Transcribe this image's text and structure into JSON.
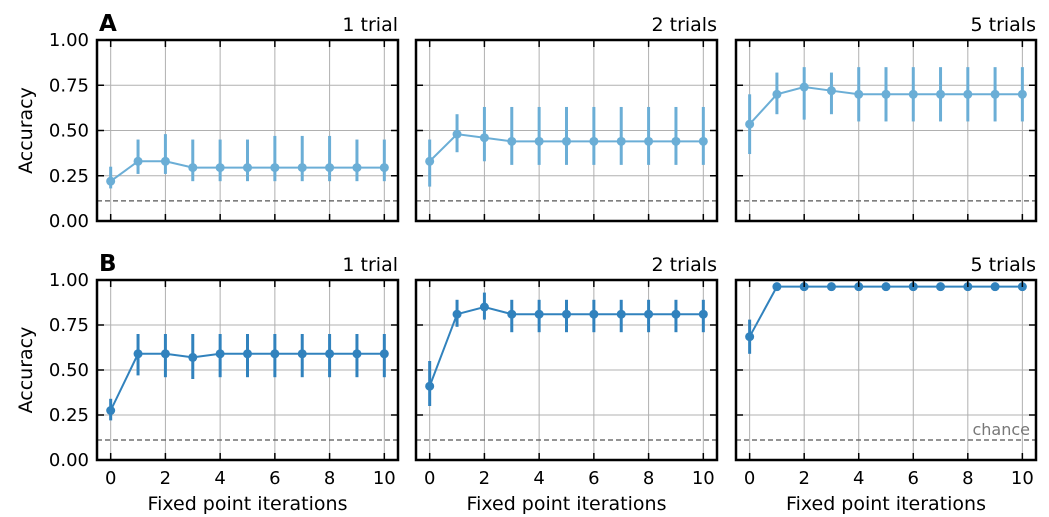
{
  "colors": {
    "row_A": "#6baed6",
    "row_B": "#3182bd",
    "chance_line": "#555555",
    "chance_label": "#777777",
    "grid": "#b0b0b0",
    "frame": "#000000"
  },
  "chart_data": [
    {
      "type": "line",
      "row": "A",
      "panel_label": "A",
      "title": "1 trial",
      "xlabel": "",
      "ylabel": "Accuracy",
      "x": [
        0,
        1,
        2,
        3,
        4,
        5,
        6,
        7,
        8,
        9,
        10
      ],
      "values": [
        0.22,
        0.33,
        0.33,
        0.295,
        0.295,
        0.295,
        0.295,
        0.295,
        0.295,
        0.295,
        0.295
      ],
      "err_low": [
        0.18,
        0.26,
        0.26,
        0.22,
        0.22,
        0.22,
        0.22,
        0.22,
        0.22,
        0.22,
        0.22
      ],
      "err_high": [
        0.3,
        0.45,
        0.48,
        0.45,
        0.45,
        0.45,
        0.47,
        0.47,
        0.47,
        0.45,
        0.45
      ],
      "chance": 0.111,
      "xlim": [
        -0.5,
        10.5
      ],
      "ylim": [
        0,
        1.0
      ],
      "xticks": [
        0,
        2,
        4,
        6,
        8,
        10
      ],
      "yticks": [
        "0.00",
        "0.25",
        "0.50",
        "0.75",
        "1.00"
      ],
      "grid": true
    },
    {
      "type": "line",
      "row": "A",
      "title": "2 trials",
      "xlabel": "",
      "x": [
        0,
        1,
        2,
        3,
        4,
        5,
        6,
        7,
        8,
        9,
        10
      ],
      "values": [
        0.33,
        0.48,
        0.46,
        0.44,
        0.44,
        0.44,
        0.44,
        0.44,
        0.44,
        0.44,
        0.44
      ],
      "err_low": [
        0.19,
        0.38,
        0.33,
        0.31,
        0.31,
        0.31,
        0.31,
        0.31,
        0.31,
        0.31,
        0.31
      ],
      "err_high": [
        0.45,
        0.59,
        0.63,
        0.63,
        0.63,
        0.63,
        0.63,
        0.63,
        0.63,
        0.63,
        0.63
      ],
      "chance": 0.111,
      "xlim": [
        -0.5,
        10.5
      ],
      "ylim": [
        0,
        1.0
      ],
      "xticks": [
        0,
        2,
        4,
        6,
        8,
        10
      ],
      "grid": true
    },
    {
      "type": "line",
      "row": "A",
      "title": "5 trials",
      "xlabel": "",
      "x": [
        0,
        1,
        2,
        3,
        4,
        5,
        6,
        7,
        8,
        9,
        10
      ],
      "values": [
        0.535,
        0.7,
        0.74,
        0.72,
        0.7,
        0.7,
        0.7,
        0.7,
        0.7,
        0.7,
        0.7
      ],
      "err_low": [
        0.37,
        0.59,
        0.56,
        0.59,
        0.55,
        0.55,
        0.55,
        0.55,
        0.55,
        0.55,
        0.55
      ],
      "err_high": [
        0.7,
        0.82,
        0.85,
        0.82,
        0.85,
        0.85,
        0.85,
        0.85,
        0.85,
        0.85,
        0.85
      ],
      "chance": 0.111,
      "xlim": [
        -0.5,
        10.5
      ],
      "ylim": [
        0,
        1.0
      ],
      "xticks": [
        0,
        2,
        4,
        6,
        8,
        10
      ],
      "grid": true
    },
    {
      "type": "line",
      "row": "B",
      "panel_label": "B",
      "title": "1 trial",
      "xlabel": "Fixed point iterations",
      "ylabel": "Accuracy",
      "x": [
        0,
        1,
        2,
        3,
        4,
        5,
        6,
        7,
        8,
        9,
        10
      ],
      "values": [
        0.275,
        0.59,
        0.59,
        0.57,
        0.59,
        0.59,
        0.59,
        0.59,
        0.59,
        0.59,
        0.59
      ],
      "err_low": [
        0.22,
        0.47,
        0.46,
        0.45,
        0.46,
        0.46,
        0.46,
        0.46,
        0.46,
        0.46,
        0.46
      ],
      "err_high": [
        0.34,
        0.7,
        0.7,
        0.7,
        0.7,
        0.7,
        0.7,
        0.7,
        0.7,
        0.7,
        0.7
      ],
      "chance": 0.111,
      "xlim": [
        -0.5,
        10.5
      ],
      "ylim": [
        0,
        1.0
      ],
      "xticks": [
        0,
        2,
        4,
        6,
        8,
        10
      ],
      "yticks": [
        "0.00",
        "0.25",
        "0.50",
        "0.75",
        "1.00"
      ],
      "grid": true
    },
    {
      "type": "line",
      "row": "B",
      "title": "2 trials",
      "xlabel": "Fixed point iterations",
      "x": [
        0,
        1,
        2,
        3,
        4,
        5,
        6,
        7,
        8,
        9,
        10
      ],
      "values": [
        0.41,
        0.81,
        0.85,
        0.81,
        0.81,
        0.81,
        0.81,
        0.81,
        0.81,
        0.81,
        0.81
      ],
      "err_low": [
        0.3,
        0.74,
        0.78,
        0.71,
        0.71,
        0.71,
        0.71,
        0.71,
        0.71,
        0.71,
        0.71
      ],
      "err_high": [
        0.55,
        0.89,
        0.93,
        0.89,
        0.89,
        0.89,
        0.89,
        0.89,
        0.89,
        0.89,
        0.89
      ],
      "chance": 0.111,
      "xlim": [
        -0.5,
        10.5
      ],
      "ylim": [
        0,
        1.0
      ],
      "xticks": [
        0,
        2,
        4,
        6,
        8,
        10
      ],
      "grid": true
    },
    {
      "type": "line",
      "row": "B",
      "title": "5 trials",
      "xlabel": "Fixed point iterations",
      "chance_label": "chance",
      "x": [
        0,
        1,
        2,
        3,
        4,
        5,
        6,
        7,
        8,
        9,
        10
      ],
      "values": [
        0.685,
        0.963,
        0.963,
        0.963,
        0.963,
        0.963,
        0.963,
        0.963,
        0.963,
        0.963,
        0.963
      ],
      "err_low": [
        0.59,
        0.94,
        0.94,
        0.94,
        0.94,
        0.94,
        0.94,
        0.94,
        0.94,
        0.94,
        0.94
      ],
      "err_high": [
        0.78,
        0.98,
        0.98,
        0.98,
        0.98,
        0.98,
        0.98,
        0.98,
        0.98,
        0.98,
        0.98
      ],
      "chance": 0.111,
      "xlim": [
        -0.5,
        10.5
      ],
      "ylim": [
        0,
        1.0
      ],
      "xticks": [
        0,
        2,
        4,
        6,
        8,
        10
      ],
      "grid": true
    }
  ]
}
